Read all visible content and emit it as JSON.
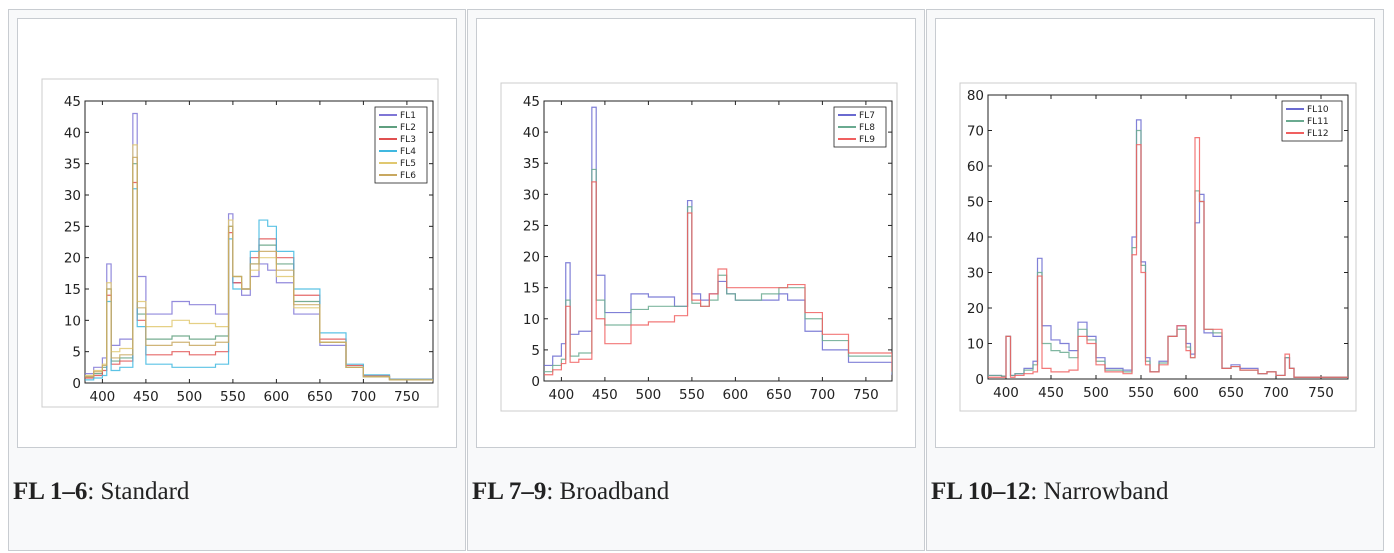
{
  "gallery": [
    {
      "caption_bold": "FL 1–6",
      "caption_text": ": Standard",
      "chart_data": {
        "type": "line",
        "xlim": [
          380,
          780
        ],
        "ylim": [
          0,
          45
        ],
        "xticks": [
          400,
          450,
          500,
          550,
          600,
          650,
          700,
          750
        ],
        "yticks": [
          0,
          5,
          10,
          15,
          20,
          25,
          30,
          35,
          40,
          45
        ],
        "step": true,
        "legend": "top-right",
        "grid": false,
        "series": [
          {
            "name": "FL1",
            "color": "#7f76d6",
            "x": [
              380,
              390,
              400,
              405,
              410,
              420,
              435,
              440,
              450,
              480,
              500,
              530,
              545,
              550,
              560,
              570,
              580,
              590,
              600,
              620,
              650,
              680,
              700,
              730,
              780
            ],
            "values": [
              1.5,
              2.5,
              4,
              19,
              6,
              7,
              43,
              17,
              11,
              13,
              12.5,
              11,
              27,
              16,
              14,
              17,
              19,
              18,
              16,
              11,
              6,
              2.5,
              1,
              0.6,
              0.4
            ]
          },
          {
            "name": "FL2",
            "color": "#5f9f7f",
            "x": [
              380,
              390,
              400,
              405,
              410,
              420,
              435,
              440,
              450,
              480,
              500,
              530,
              545,
              550,
              560,
              570,
              580,
              590,
              600,
              620,
              650,
              680,
              700,
              730,
              780
            ],
            "values": [
              1,
              1.5,
              2.5,
              15,
              3.5,
              4,
              35,
              11,
              7,
              7.5,
              7,
              7.5,
              25,
              17,
              15,
              19,
              22,
              22,
              19,
              13,
              6.5,
              2.5,
              1,
              0.5,
              0.3
            ]
          },
          {
            "name": "FL3",
            "color": "#e05050",
            "x": [
              380,
              390,
              400,
              405,
              410,
              420,
              435,
              440,
              450,
              480,
              500,
              530,
              545,
              550,
              560,
              570,
              580,
              590,
              600,
              620,
              650,
              680,
              700,
              730,
              780
            ],
            "values": [
              0.8,
              1.2,
              2,
              14,
              3,
              3.5,
              32,
              10,
              4.5,
              5,
              4.5,
              5,
              24,
              16,
              15,
              20,
              23,
              23,
              20,
              14,
              7,
              2.8,
              1.2,
              0.6,
              0.3
            ]
          },
          {
            "name": "FL4",
            "color": "#40b8e0",
            "x": [
              380,
              390,
              400,
              405,
              410,
              420,
              435,
              440,
              450,
              480,
              500,
              530,
              545,
              550,
              560,
              570,
              580,
              590,
              600,
              620,
              650,
              680,
              700,
              730,
              780
            ],
            "values": [
              0.5,
              0.8,
              1.2,
              13,
              2,
              2.5,
              31,
              9,
              3,
              2.5,
              2.5,
              3,
              23,
              15,
              15,
              21,
              26,
              25,
              21,
              15,
              8,
              3,
              1.3,
              0.6,
              0.3
            ]
          },
          {
            "name": "FL5",
            "color": "#e0c870",
            "x": [
              380,
              390,
              400,
              405,
              410,
              420,
              435,
              440,
              450,
              480,
              500,
              530,
              545,
              550,
              560,
              570,
              580,
              590,
              600,
              620,
              650,
              680,
              700,
              730,
              780
            ],
            "values": [
              1.2,
              2,
              3,
              16,
              5,
              5.5,
              38,
              13,
              9,
              10,
              9.5,
              9,
              26,
              17,
              15,
              18,
              20,
              20,
              17,
              12,
              6.5,
              2.5,
              1,
              0.5,
              0.3
            ]
          },
          {
            "name": "FL6",
            "color": "#c8a860",
            "x": [
              380,
              390,
              400,
              405,
              410,
              420,
              435,
              440,
              450,
              480,
              500,
              530,
              545,
              550,
              560,
              570,
              580,
              590,
              600,
              620,
              650,
              680,
              700,
              730,
              780
            ],
            "values": [
              1,
              1.8,
              2.8,
              15,
              4,
              4.5,
              36,
              12,
              6,
              6.5,
              6,
              6.5,
              25,
              17,
              15,
              19,
              21,
              21,
              18,
              12.5,
              6.5,
              2.5,
              1,
              0.5,
              0.3
            ]
          }
        ]
      }
    },
    {
      "caption_bold": "FL 7–9",
      "caption_text": ": Broadband",
      "chart_data": {
        "type": "line",
        "xlim": [
          380,
          780
        ],
        "ylim": [
          0,
          45
        ],
        "xticks": [
          400,
          450,
          500,
          550,
          600,
          650,
          700,
          750
        ],
        "yticks": [
          0,
          5,
          10,
          15,
          20,
          25,
          30,
          35,
          40,
          45
        ],
        "step": true,
        "legend": "top-right",
        "grid": false,
        "series": [
          {
            "name": "FL7",
            "color": "#6a6ad0",
            "x": [
              380,
              390,
              400,
              405,
              410,
              420,
              435,
              440,
              450,
              480,
              500,
              530,
              545,
              550,
              560,
              570,
              580,
              590,
              600,
              630,
              650,
              660,
              680,
              700,
              730,
              780
            ],
            "values": [
              2.5,
              4,
              6,
              19,
              7.5,
              8,
              44,
              17,
              11,
              14,
              13.5,
              12,
              29,
              14,
              13,
              14,
              16,
              14,
              13,
              13,
              14,
              13,
              8,
              5,
              3,
              1
            ]
          },
          {
            "name": "FL8",
            "color": "#6aaa90",
            "x": [
              380,
              390,
              400,
              405,
              410,
              420,
              435,
              440,
              450,
              480,
              500,
              530,
              545,
              550,
              560,
              570,
              580,
              590,
              600,
              630,
              650,
              660,
              680,
              700,
              730,
              780
            ],
            "values": [
              1.5,
              2.5,
              3.5,
              13,
              4,
              4.5,
              34,
              13,
              9,
              11.5,
              12,
              12,
              28,
              12.5,
              12,
              13,
              17,
              14,
              13,
              14,
              15,
              15,
              10,
              6.5,
              4,
              1.3
            ]
          },
          {
            "name": "FL9",
            "color": "#f06060",
            "x": [
              380,
              390,
              400,
              405,
              410,
              420,
              435,
              440,
              450,
              480,
              500,
              530,
              545,
              550,
              560,
              570,
              580,
              590,
              600,
              630,
              650,
              660,
              680,
              700,
              730,
              780
            ],
            "values": [
              1,
              1.8,
              2.8,
              12,
              3,
              3.5,
              32,
              10,
              6,
              9,
              9.5,
              10.5,
              27,
              13,
              12,
              14,
              18,
              15,
              15,
              15,
              15,
              15.5,
              11,
              7.5,
              4.5,
              1.5
            ]
          }
        ]
      }
    },
    {
      "caption_bold": "FL 10–12",
      "caption_text": ": Narrowband",
      "chart_data": {
        "type": "line",
        "xlim": [
          380,
          780
        ],
        "ylim": [
          0,
          80
        ],
        "xticks": [
          400,
          450,
          500,
          550,
          600,
          650,
          700,
          750
        ],
        "yticks": [
          0,
          10,
          20,
          30,
          40,
          50,
          60,
          70,
          80
        ],
        "step": true,
        "legend": "top-right",
        "grid": false,
        "series": [
          {
            "name": "FL10",
            "color": "#6a6ad0",
            "x": [
              380,
              395,
              400,
              405,
              410,
              420,
              430,
              435,
              440,
              450,
              460,
              470,
              480,
              490,
              500,
              510,
              530,
              540,
              545,
              550,
              555,
              560,
              570,
              580,
              590,
              600,
              605,
              610,
              615,
              620,
              630,
              640,
              650,
              660,
              680,
              690,
              700,
              710,
              715,
              720,
              780
            ],
            "values": [
              1,
              0.8,
              12,
              1,
              1.5,
              3,
              5,
              34,
              15,
              11,
              10,
              8,
              16,
              12,
              6,
              3,
              2.5,
              40,
              73,
              33,
              6,
              2,
              5,
              12,
              15,
              10,
              7,
              44,
              52,
              13,
              12,
              3,
              4,
              3,
              1.5,
              2,
              1,
              6,
              3,
              0.5,
              0.3
            ]
          },
          {
            "name": "FL11",
            "color": "#6aaa90",
            "x": [
              380,
              395,
              400,
              405,
              410,
              420,
              430,
              435,
              440,
              450,
              460,
              470,
              480,
              490,
              500,
              510,
              530,
              540,
              545,
              550,
              555,
              560,
              570,
              580,
              590,
              600,
              605,
              610,
              615,
              620,
              630,
              640,
              650,
              660,
              680,
              690,
              700,
              710,
              715,
              720,
              780
            ],
            "values": [
              1,
              0.8,
              12,
              1,
              1.5,
              2.5,
              4,
              30,
              10,
              8,
              7.5,
              6,
              14,
              11,
              5,
              2.5,
              2,
              37,
              70,
              32,
              5,
              2,
              4.5,
              12,
              14,
              9,
              6,
              53,
              50,
              14,
              13,
              3,
              3.5,
              2.5,
              1.5,
              2,
              1,
              6,
              3,
              0.5,
              0.3
            ]
          },
          {
            "name": "FL12",
            "color": "#f06060",
            "x": [
              380,
              395,
              400,
              405,
              410,
              420,
              430,
              435,
              440,
              450,
              460,
              470,
              480,
              490,
              500,
              510,
              530,
              540,
              545,
              550,
              555,
              560,
              570,
              580,
              590,
              600,
              605,
              610,
              615,
              620,
              630,
              640,
              650,
              660,
              680,
              690,
              700,
              710,
              715,
              720,
              780
            ],
            "values": [
              0.5,
              0.5,
              12,
              0.5,
              1,
              1.5,
              2,
              29,
              3,
              2,
              2,
              2.5,
              12,
              10,
              4,
              2,
              1.5,
              35,
              66,
              30,
              4,
              2,
              4,
              12,
              15,
              8,
              6,
              68,
              50,
              14,
              14,
              3,
              3.5,
              2.5,
              1.5,
              2,
              1,
              7,
              3,
              0.5,
              0.3
            ]
          }
        ]
      }
    }
  ]
}
